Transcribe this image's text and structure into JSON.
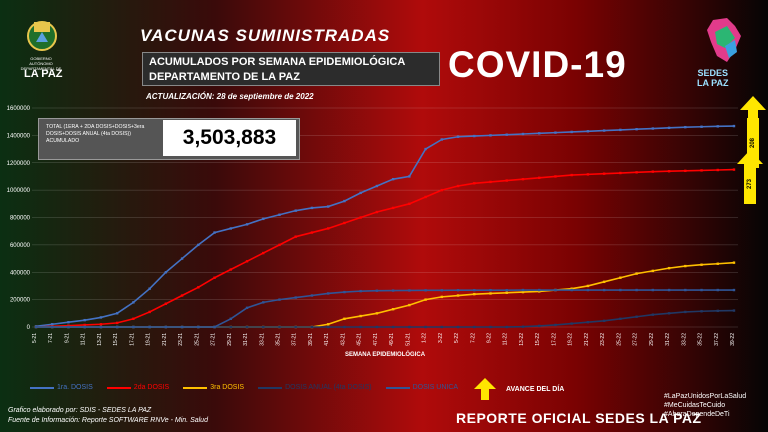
{
  "header": {
    "title": "VACUNAS SUMINISTRADAS",
    "subtitle_line1": "ACUMULADOS POR SEMANA EPIDEMIOLÓGICA",
    "subtitle_line2": "DEPARTAMENTO DE LA PAZ",
    "update": "ACTUALIZACIÓN: 28 de septiembre de 2022",
    "covid": "COVID-19"
  },
  "logos": {
    "left_small": "GOBIERNO AUTÓNOMO DEPARTAMENTAL DE",
    "left_big": "LA PAZ",
    "right_line1": "SEDES",
    "right_line2": "LA PAZ"
  },
  "total": {
    "label": "TOTAL (1ERA + 2DA DOSIS+DOSIS+3era DOSIS+DOSIS ANUAL (4ta DOSIS)) ACUMULADO",
    "value": "3,503,883"
  },
  "badges": {
    "top": "208",
    "second": "273"
  },
  "legend": {
    "avance": "AVANCE DEL DÍA"
  },
  "footer": {
    "line1": "Grafico elaborado por: SDIS - SEDES LA PAZ",
    "line2": "Fuente de Información: Reporte SOFTWARE RNVe - Min. Salud",
    "report": "REPORTE OFICIAL SEDES LA PAZ",
    "hashtags": [
      "#LaPazUnidosPorLaSalud",
      "#MeCuidasTeCuido",
      "#AhoraDependeDeTi"
    ]
  },
  "colors": {
    "series1": "#4472c4",
    "series2": "#ff0000",
    "series3": "#ffc000",
    "series4": "#203864",
    "series5": "#2f5597",
    "accent": "#ffe600"
  },
  "chart_data": {
    "type": "line",
    "xlabel": "SEMANA EPIDEMIOLÓGICA",
    "ylabel": "",
    "ylim": [
      0,
      1600000
    ],
    "yticks": [
      "0",
      "200000",
      "400000",
      "600000",
      "800000",
      "1000000",
      "1200000",
      "1400000",
      "1600000"
    ],
    "categories": [
      "5-21",
      "7-21",
      "9-21",
      "11-21",
      "13-21",
      "15-21",
      "17-21",
      "19-21",
      "21-21",
      "23-21",
      "25-21",
      "27-21",
      "29-21",
      "31-21",
      "33-21",
      "35-21",
      "37-21",
      "39-21",
      "41-21",
      "43-21",
      "45-21",
      "47-21",
      "49-21",
      "51-21",
      "1-22",
      "3-22",
      "5-22",
      "7-22",
      "9-22",
      "11-22",
      "13-22",
      "15-22",
      "17-22",
      "19-22",
      "21-22",
      "23-22",
      "25-22",
      "27-22",
      "29-22",
      "31-22",
      "33-22",
      "35-22",
      "37-22",
      "39-22"
    ],
    "series": [
      {
        "name": "1ra. DOSIS",
        "values": [
          5000,
          20000,
          35000,
          50000,
          70000,
          100000,
          180000,
          280000,
          400000,
          500000,
          600000,
          690000,
          720000,
          750000,
          790000,
          820000,
          850000,
          870000,
          880000,
          920000,
          980000,
          1030000,
          1080000,
          1100000,
          1300000,
          1370000,
          1390000,
          1395000,
          1400000,
          1405000,
          1410000,
          1415000,
          1420000,
          1425000,
          1430000,
          1435000,
          1440000,
          1445000,
          1450000,
          1455000,
          1460000,
          1463000,
          1466000,
          1468000
        ]
      },
      {
        "name": "2da DOSIS",
        "values": [
          0,
          5000,
          10000,
          15000,
          20000,
          30000,
          60000,
          110000,
          170000,
          230000,
          290000,
          360000,
          420000,
          480000,
          540000,
          600000,
          660000,
          690000,
          720000,
          760000,
          800000,
          840000,
          870000,
          900000,
          950000,
          1000000,
          1030000,
          1050000,
          1060000,
          1070000,
          1080000,
          1090000,
          1100000,
          1110000,
          1115000,
          1120000,
          1125000,
          1130000,
          1135000,
          1138000,
          1141000,
          1144000,
          1147000,
          1150000
        ]
      },
      {
        "name": "3ra DOSIS",
        "values": [
          0,
          0,
          0,
          0,
          0,
          0,
          0,
          0,
          0,
          0,
          0,
          0,
          0,
          0,
          0,
          0,
          0,
          0,
          20000,
          60000,
          80000,
          100000,
          130000,
          160000,
          200000,
          220000,
          230000,
          240000,
          245000,
          250000,
          255000,
          260000,
          270000,
          280000,
          300000,
          330000,
          360000,
          390000,
          410000,
          430000,
          445000,
          455000,
          462000,
          470000
        ]
      },
      {
        "name": "DOSIS ANUAL (4ta DOSIS)",
        "values": [
          0,
          0,
          0,
          0,
          0,
          0,
          0,
          0,
          0,
          0,
          0,
          0,
          0,
          0,
          0,
          0,
          0,
          0,
          0,
          0,
          0,
          0,
          0,
          0,
          0,
          0,
          0,
          0,
          0,
          0,
          2000,
          8000,
          15000,
          25000,
          35000,
          45000,
          60000,
          75000,
          90000,
          100000,
          110000,
          115000,
          118000,
          120000
        ]
      },
      {
        "name": "DOSIS UNICA",
        "values": [
          0,
          0,
          0,
          0,
          0,
          0,
          0,
          0,
          0,
          0,
          0,
          0,
          60000,
          140000,
          180000,
          200000,
          215000,
          230000,
          245000,
          255000,
          262000,
          265000,
          266000,
          267000,
          268000,
          268000,
          269000,
          269000,
          269000,
          269000,
          270000,
          270000,
          270000,
          270000,
          270000,
          270000,
          270000,
          270000,
          270000,
          270000,
          270000,
          270000,
          270000,
          270000
        ]
      }
    ]
  }
}
